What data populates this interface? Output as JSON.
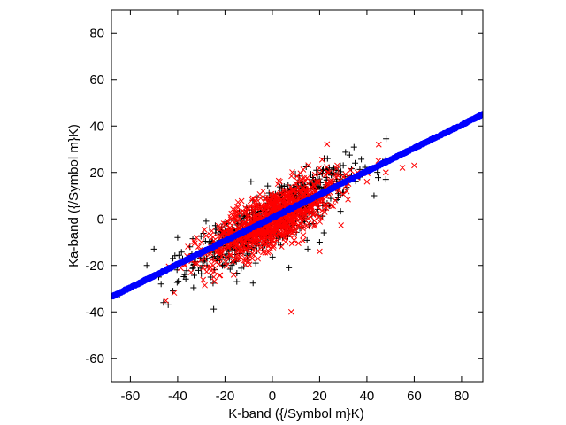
{
  "chart_data": {
    "type": "scatter",
    "title": "",
    "xlabel": "K-band ({/Symbol m}K)",
    "ylabel": "Ka-band ({/Symbol m}K)",
    "xlim": [
      -68,
      89
    ],
    "ylim": [
      -70,
      90
    ],
    "xticks": [
      -60,
      -40,
      -20,
      0,
      20,
      40,
      60,
      80
    ],
    "yticks": [
      -60,
      -40,
      -20,
      0,
      20,
      40,
      60,
      80
    ],
    "grid": false,
    "legend": "none",
    "series": [
      {
        "marker": "plus",
        "color": "#000000",
        "n_points": 700,
        "distribution": {
          "x_mean": 0,
          "x_sd": 16,
          "y_slope": 0.55,
          "y_intercept": 0,
          "y_resid_sd": 6
        },
        "points": [
          [
            -53,
            -20
          ],
          [
            -48,
            -25
          ],
          [
            -46,
            -36
          ],
          [
            -44,
            -37
          ],
          [
            -42,
            -31
          ],
          [
            -47,
            -28
          ],
          [
            -42,
            -17
          ],
          [
            -40,
            -20
          ],
          [
            -37,
            -24
          ],
          [
            -50,
            -13
          ],
          [
            -40,
            -8
          ],
          [
            -34,
            -15
          ],
          [
            -28,
            -1
          ],
          [
            -24,
            -6
          ],
          [
            -20,
            -5
          ],
          [
            -15,
            -27
          ],
          [
            -7,
            -19
          ],
          [
            -9,
            16
          ],
          [
            5,
            14
          ],
          [
            7,
            -21
          ],
          [
            15,
            -13
          ],
          [
            20,
            -10
          ],
          [
            25,
            19
          ],
          [
            27,
            21
          ],
          [
            30,
            23
          ],
          [
            35,
            24
          ],
          [
            37,
            18
          ],
          [
            40,
            21
          ],
          [
            43,
            10
          ],
          [
            48,
            17
          ]
        ]
      },
      {
        "marker": "x",
        "color": "#ff0000",
        "n_points": 1000,
        "distribution": {
          "x_mean": 0,
          "x_sd": 14,
          "y_slope": 0.5,
          "y_intercept": 0,
          "y_resid_sd": 6
        },
        "points": [
          [
            -36,
            -16
          ],
          [
            -30,
            -10
          ],
          [
            -25,
            -20
          ],
          [
            -22,
            -15
          ],
          [
            -18,
            -7
          ],
          [
            -15,
            3
          ],
          [
            -12,
            -2
          ],
          [
            -10,
            1
          ],
          [
            -8,
            5
          ],
          [
            -5,
            -3
          ],
          [
            -2,
            0
          ],
          [
            0,
            4
          ],
          [
            3,
            6
          ],
          [
            5,
            2
          ],
          [
            8,
            -40
          ],
          [
            10,
            8
          ],
          [
            12,
            11
          ],
          [
            15,
            7
          ],
          [
            18,
            14
          ],
          [
            20,
            -14
          ],
          [
            22,
            10
          ],
          [
            25,
            15
          ],
          [
            28,
            12
          ],
          [
            30,
            18
          ],
          [
            33,
            21
          ],
          [
            36,
            20
          ],
          [
            40,
            16
          ],
          [
            45,
            32
          ],
          [
            48,
            20
          ],
          [
            55,
            22
          ],
          [
            60,
            23
          ]
        ]
      },
      {
        "marker": "circle",
        "color": "#0000ff",
        "n_points": 1600,
        "fit": {
          "slope": 0.5,
          "intercept": 0.5
        },
        "x_range": [
          -68,
          89
        ]
      }
    ]
  }
}
